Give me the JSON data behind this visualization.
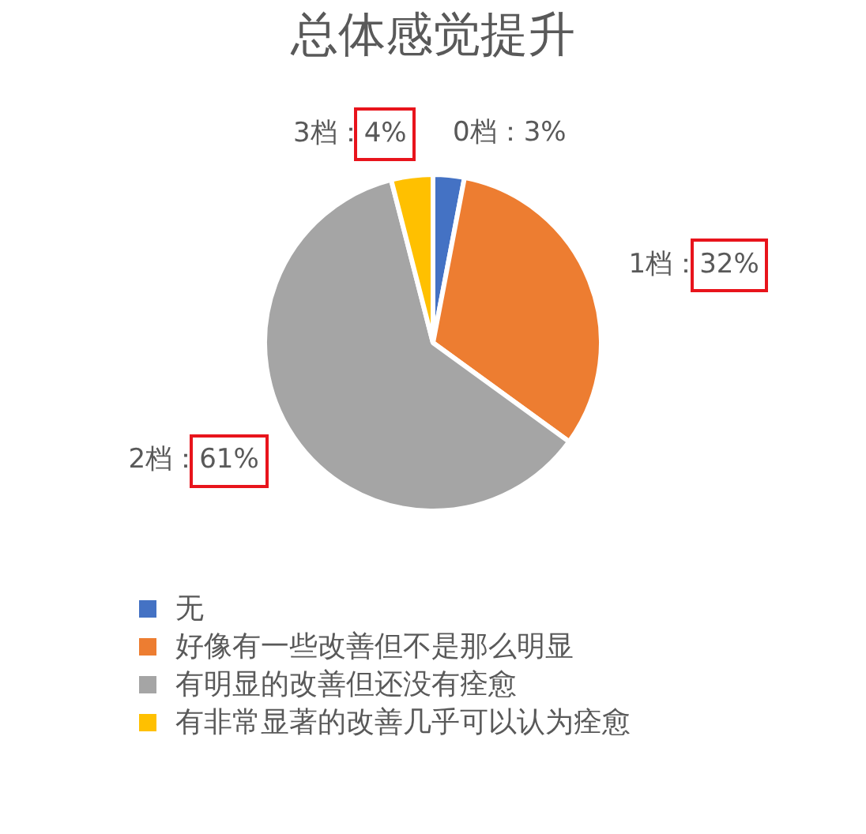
{
  "chart_data": {
    "type": "pie",
    "title": "总体感觉提升",
    "categories": [
      "无",
      "好像有一些改善但不是那么明显",
      "有明显的改善但还没有痊愈",
      "有非常显著的改善几乎可以认为痊愈"
    ],
    "values": [
      3,
      32,
      61,
      4
    ],
    "colors": [
      "#4472c4",
      "#ed7d31",
      "#a5a5a5",
      "#ffc000"
    ],
    "value_labels": [
      "0档：3%",
      "1档：32%",
      "2档：61%",
      "3档：4%"
    ],
    "legend": "bottom left"
  }
}
